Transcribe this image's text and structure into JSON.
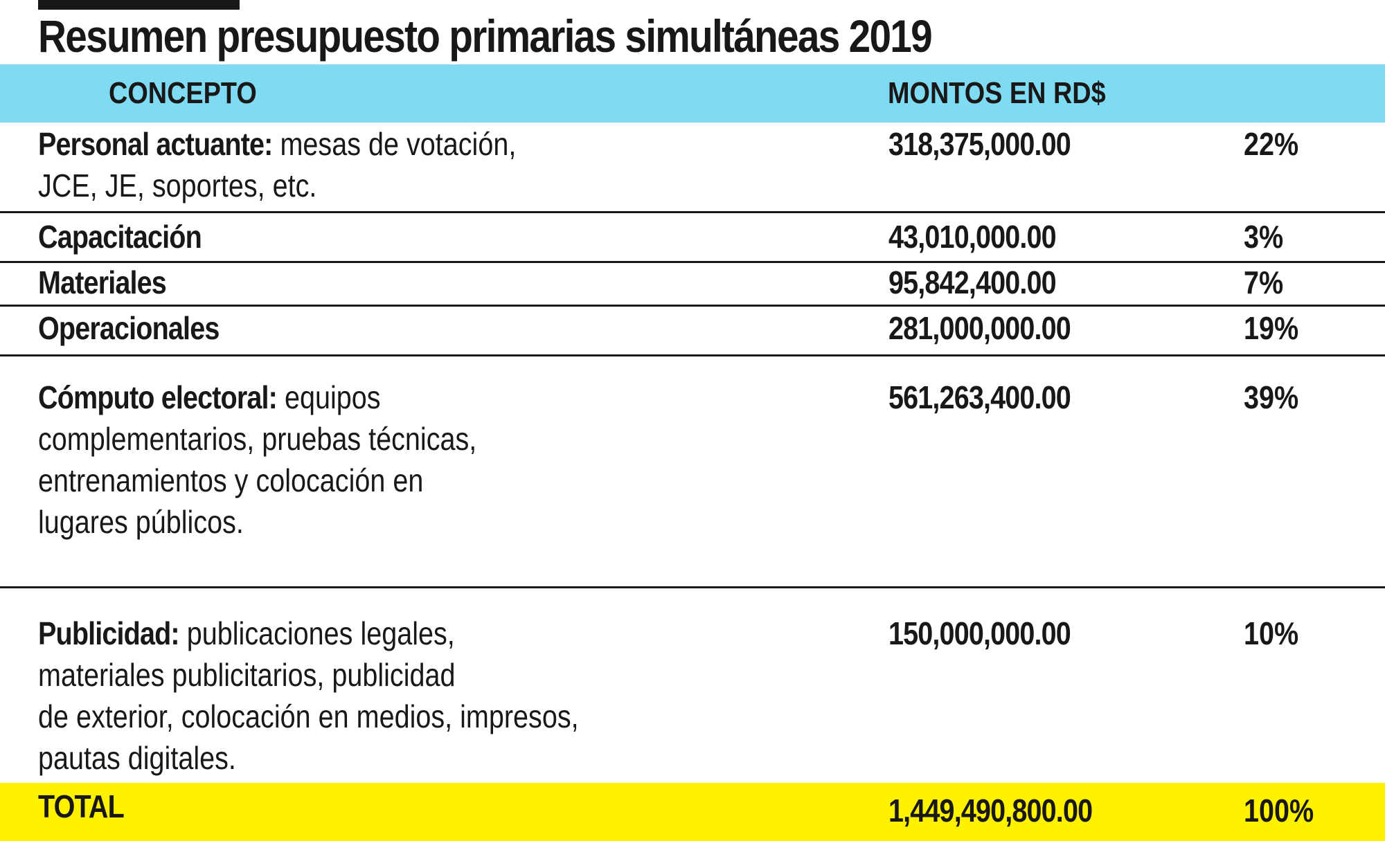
{
  "title": "Resumen presupuesto primarias simultáneas 2019",
  "header": {
    "concept": "CONCEPTO",
    "amount": "MONTOS EN RD$"
  },
  "colors": {
    "header_bg": "#7fdbf1",
    "total_bg": "#fff200",
    "text": "#1a1718"
  },
  "rows": [
    {
      "label": "Personal actuante:",
      "lines": [
        "mesas de votación,",
        "JCE, JE, soportes, etc."
      ],
      "amount": "318,375,000.00",
      "percent": "22%"
    },
    {
      "label": "Capacitación",
      "lines": [],
      "amount": "43,010,000.00",
      "percent": "3%"
    },
    {
      "label": "Materiales",
      "lines": [],
      "amount": "95,842,400.00",
      "percent": "7%"
    },
    {
      "label": "Operacionales",
      "lines": [],
      "amount": "281,000,000.00",
      "percent": "19%"
    },
    {
      "label": "Cómputo electoral:",
      "lines": [
        "equipos",
        "complementarios, pruebas técnicas,",
        "entrenamientos y colocación en",
        "lugares públicos."
      ],
      "amount": "561,263,400.00",
      "percent": "39%"
    },
    {
      "label": "Publicidad:",
      "lines": [
        "publicaciones legales,",
        "materiales publicitarios, publicidad",
        "de exterior, colocación en medios, impresos,",
        "pautas digitales."
      ],
      "amount": "150,000,000.00",
      "percent": "10%"
    }
  ],
  "total": {
    "label": "TOTAL",
    "amount": "1,449,490,800.00",
    "percent": "100%"
  }
}
